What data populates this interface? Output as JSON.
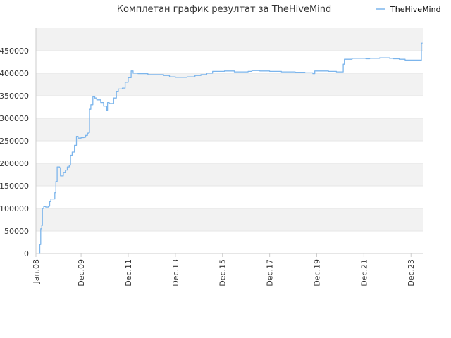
{
  "chart_data": {
    "type": "line",
    "title": "Комплетан график резултат за TheHiveMind",
    "xlabel": "",
    "ylabel": "",
    "legend": {
      "position": "top-right"
    },
    "grid": true,
    "colors": {
      "series": "#7cb5ec",
      "band": "#f2f2f2",
      "grid": "#e6e6e6",
      "axis": "#cccccc"
    },
    "xlim": [
      "2008-01-01",
      "2024-06-01"
    ],
    "ylim": [
      0,
      500000
    ],
    "x_ticks": [
      "Jan.08",
      "Dec.09",
      "Dec.11",
      "Dec.13",
      "Dec.15",
      "Dec.17",
      "Dec.19",
      "Dec.21",
      "Dec.23"
    ],
    "x_tick_dates": [
      "2008-01-01",
      "2009-12-01",
      "2011-12-01",
      "2013-12-01",
      "2015-12-01",
      "2017-12-01",
      "2019-12-01",
      "2021-12-01",
      "2023-12-01"
    ],
    "y_ticks": [
      0,
      50000,
      100000,
      150000,
      200000,
      250000,
      300000,
      350000,
      400000,
      450000
    ],
    "series": [
      {
        "name": "TheHiveMind",
        "points": [
          [
            "2008-02-15",
            0
          ],
          [
            "2008-03-01",
            20000
          ],
          [
            "2008-03-15",
            55000
          ],
          [
            "2008-04-01",
            62000
          ],
          [
            "2008-04-10",
            100000
          ],
          [
            "2008-05-01",
            104000
          ],
          [
            "2008-06-01",
            103000
          ],
          [
            "2008-07-10",
            105000
          ],
          [
            "2008-08-01",
            115000
          ],
          [
            "2008-08-20",
            121000
          ],
          [
            "2008-10-01",
            121000
          ],
          [
            "2008-10-20",
            135000
          ],
          [
            "2008-11-05",
            160000
          ],
          [
            "2008-11-25",
            192000
          ],
          [
            "2009-01-01",
            190000
          ],
          [
            "2009-01-15",
            172000
          ],
          [
            "2009-02-10",
            172000
          ],
          [
            "2009-03-01",
            180000
          ],
          [
            "2009-04-01",
            185000
          ],
          [
            "2009-05-01",
            192000
          ],
          [
            "2009-06-01",
            196000
          ],
          [
            "2009-06-20",
            218000
          ],
          [
            "2009-07-15",
            225000
          ],
          [
            "2009-08-20",
            240000
          ],
          [
            "2009-09-20",
            260000
          ],
          [
            "2009-10-15",
            256000
          ],
          [
            "2009-12-01",
            257000
          ],
          [
            "2010-01-15",
            258000
          ],
          [
            "2010-02-10",
            262000
          ],
          [
            "2010-03-10",
            267000
          ],
          [
            "2010-04-01",
            268000
          ],
          [
            "2010-04-10",
            320000
          ],
          [
            "2010-05-01",
            330000
          ],
          [
            "2010-06-01",
            348000
          ],
          [
            "2010-07-01",
            345000
          ],
          [
            "2010-08-01",
            341000
          ],
          [
            "2010-10-01",
            335000
          ],
          [
            "2010-11-15",
            327000
          ],
          [
            "2011-01-01",
            318000
          ],
          [
            "2011-01-15",
            335000
          ],
          [
            "2011-02-10",
            333000
          ],
          [
            "2011-04-01",
            333000
          ],
          [
            "2011-04-20",
            345000
          ],
          [
            "2011-06-01",
            360000
          ],
          [
            "2011-07-01",
            365000
          ],
          [
            "2011-09-01",
            367000
          ],
          [
            "2011-10-15",
            380000
          ],
          [
            "2011-12-01",
            390000
          ],
          [
            "2012-01-15",
            405000
          ],
          [
            "2012-02-15",
            400000
          ],
          [
            "2012-05-01",
            399000
          ],
          [
            "2012-10-01",
            397000
          ],
          [
            "2013-06-01",
            395000
          ],
          [
            "2013-09-01",
            392000
          ],
          [
            "2013-12-01",
            391000
          ],
          [
            "2014-06-01",
            392000
          ],
          [
            "2014-10-01",
            395000
          ],
          [
            "2015-01-01",
            397000
          ],
          [
            "2015-04-01",
            400000
          ],
          [
            "2015-07-01",
            404000
          ],
          [
            "2016-01-01",
            405000
          ],
          [
            "2016-06-01",
            403000
          ],
          [
            "2017-01-01",
            404000
          ],
          [
            "2017-03-01",
            406000
          ],
          [
            "2017-07-01",
            405000
          ],
          [
            "2017-12-01",
            404000
          ],
          [
            "2018-06-01",
            403000
          ],
          [
            "2019-01-01",
            402000
          ],
          [
            "2019-06-01",
            401000
          ],
          [
            "2019-10-01",
            399000
          ],
          [
            "2019-11-01",
            405000
          ],
          [
            "2020-06-01",
            404000
          ],
          [
            "2020-10-01",
            403000
          ],
          [
            "2021-01-01",
            403000
          ],
          [
            "2021-01-15",
            420000
          ],
          [
            "2021-02-01",
            431000
          ],
          [
            "2021-06-01",
            433000
          ],
          [
            "2022-01-01",
            432000
          ],
          [
            "2022-03-01",
            433000
          ],
          [
            "2022-08-01",
            434000
          ],
          [
            "2023-01-01",
            433000
          ],
          [
            "2023-03-01",
            432000
          ],
          [
            "2023-06-01",
            431000
          ],
          [
            "2023-09-01",
            429000
          ],
          [
            "2024-01-01",
            429000
          ],
          [
            "2024-05-01",
            428000
          ],
          [
            "2024-05-10",
            466000
          ],
          [
            "2024-05-20",
            468000
          ]
        ]
      }
    ]
  }
}
